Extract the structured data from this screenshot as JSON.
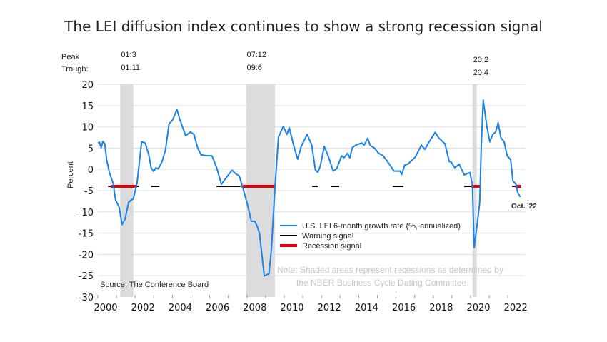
{
  "chart_data": {
    "type": "line",
    "title": "The LEI diffusion index continues to show a strong recession signal",
    "ylabel": "Percent",
    "xlabel": "",
    "xlim": [
      2000,
      2022.9
    ],
    "ylim": [
      -30,
      20
    ],
    "yticks": [
      20,
      15,
      10,
      5,
      0,
      -5,
      -10,
      -15,
      -20,
      -25,
      -30
    ],
    "xticks": [
      2000,
      2002,
      2004,
      2006,
      2008,
      2010,
      2012,
      2014,
      2016,
      2018,
      2020,
      2022
    ],
    "grid": true,
    "legend_position": "center-right",
    "signal_level": -4,
    "peak_label": "Peak",
    "trough_label": "Trough:",
    "recessions": [
      {
        "peak": "01:3",
        "trough": "01:11",
        "start": 2001.2,
        "end": 2001.9
      },
      {
        "peak": "07:12",
        "trough": "09:6",
        "start": 2007.95,
        "end": 2009.5
      },
      {
        "peak": "20:2",
        "trough": "20:4",
        "start": 2020.1,
        "end": 2020.3
      }
    ],
    "series": [
      {
        "name": "U.S. LEI 6-month growth rate (%, annualized)",
        "color": "#1a82e8",
        "x": [
          2000.0,
          2000.09,
          2000.18,
          2000.27,
          2000.37,
          2000.47,
          2000.62,
          2000.82,
          2000.95,
          2001.14,
          2001.3,
          2001.46,
          2001.65,
          2001.9,
          2002.1,
          2002.35,
          2002.54,
          2002.73,
          2002.86,
          2002.99,
          2003.12,
          2003.24,
          2003.44,
          2003.63,
          2003.82,
          2004.01,
          2004.14,
          2004.24,
          2004.39,
          2004.71,
          2004.97,
          2005.16,
          2005.35,
          2005.54,
          2005.86,
          2006.12,
          2006.37,
          2006.63,
          2006.95,
          2007.2,
          2007.39,
          2007.59,
          2007.78,
          2008.03,
          2008.23,
          2008.42,
          2008.54,
          2008.67,
          2008.93,
          2009.18,
          2009.31,
          2009.5,
          2009.69,
          2009.95,
          2010.14,
          2010.27,
          2010.52,
          2010.72,
          2010.91,
          2011.23,
          2011.48,
          2011.67,
          2011.8,
          2011.93,
          2012.15,
          2012.38,
          2012.63,
          2012.82,
          2013.08,
          2013.2,
          2013.4,
          2013.52,
          2013.65,
          2013.84,
          2014.16,
          2014.29,
          2014.48,
          2014.61,
          2014.87,
          2015.06,
          2015.31,
          2015.63,
          2015.89,
          2016.21,
          2016.31,
          2016.46,
          2016.65,
          2017.04,
          2017.36,
          2017.55,
          2017.74,
          2018.1,
          2018.31,
          2018.63,
          2018.86,
          2018.95,
          2019.15,
          2019.39,
          2019.66,
          2019.97,
          2020.1,
          2020.19,
          2020.36,
          2020.49,
          2020.57,
          2020.68,
          2020.87,
          2021.03,
          2021.19,
          2021.35,
          2021.48,
          2021.63,
          2021.8,
          2021.96,
          2022.15,
          2022.27,
          2022.44,
          2022.53,
          2022.67
        ],
        "values": [
          6.2,
          6.4,
          5.1,
          6.6,
          6.0,
          2.3,
          -0.75,
          -3.3,
          -7.2,
          -8.9,
          -13.0,
          -11.7,
          -7.7,
          -6.9,
          -3.3,
          6.5,
          6.2,
          3.4,
          0.4,
          -0.5,
          0.4,
          0.1,
          1.8,
          4.6,
          10.7,
          11.6,
          13.0,
          14.1,
          11.8,
          7.9,
          8.8,
          8.2,
          5.1,
          3.4,
          3.2,
          3.2,
          0.4,
          -3.5,
          -1.6,
          -0.2,
          -1.0,
          -1.6,
          -4.4,
          -8.3,
          -12.2,
          -12.2,
          -13.3,
          -15.0,
          -25.1,
          -24.5,
          -18.9,
          -4.4,
          7.6,
          10.1,
          8.2,
          9.8,
          5.4,
          2.4,
          5.4,
          8.2,
          5.7,
          -0.1,
          -0.7,
          0.7,
          5.4,
          2.9,
          -0.4,
          0.2,
          3.2,
          2.7,
          3.8,
          2.7,
          5.1,
          5.7,
          6.2,
          5.7,
          7.3,
          5.7,
          4.9,
          3.8,
          3.2,
          1.3,
          -0.4,
          -0.4,
          -1.2,
          1.0,
          1.3,
          2.9,
          5.7,
          4.7,
          6.2,
          8.7,
          7.3,
          6.0,
          1.8,
          1.8,
          0.4,
          1.2,
          -1.3,
          -0.75,
          -3.8,
          -18.4,
          -12.8,
          -7.7,
          5.1,
          16.3,
          10.2,
          6.5,
          8.2,
          8.8,
          11.0,
          7.4,
          6.5,
          3.2,
          2.3,
          -2.7,
          -3.5,
          -5.5,
          -6.5
        ]
      },
      {
        "name": "Warning signal",
        "color": "#000000",
        "segments": [
          [
            2000.55,
            2002.2
          ],
          [
            2002.86,
            2003.3
          ],
          [
            2006.37,
            2007.65
          ],
          [
            2011.5,
            2011.8
          ],
          [
            2012.53,
            2012.95
          ],
          [
            2015.82,
            2016.4
          ],
          [
            2019.66,
            2020.04
          ],
          [
            2022.23,
            2022.4
          ]
        ]
      },
      {
        "name": "Recession signal",
        "color": "#e8000b",
        "segments": [
          [
            2000.7,
            2002.1
          ],
          [
            2007.71,
            2009.5
          ],
          [
            2020.04,
            2020.55
          ],
          [
            2022.4,
            2022.72
          ]
        ]
      }
    ],
    "annotations": {
      "last_point": "Oct. '22",
      "note_line1": "Note: Shaded areas represent recessions as determined by",
      "note_line2": "the NBER Business Cycle Dating Committee.",
      "source": "Source: The Conference Board"
    }
  }
}
